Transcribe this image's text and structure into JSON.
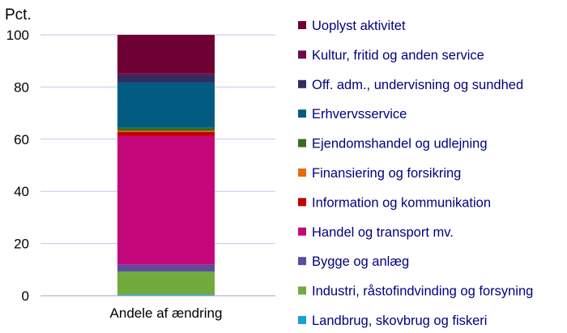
{
  "chart_data": {
    "type": "bar",
    "stacked": true,
    "categories": [
      "Andele af ændring"
    ],
    "ylabel": "Pct.",
    "ylim": [
      0,
      100
    ],
    "yticks": [
      0,
      20,
      40,
      60,
      80,
      100
    ],
    "grid": true,
    "legend_position": "right",
    "series": [
      {
        "name": "Landbrug, skovbrug og fiskeri",
        "values": [
          0.5
        ],
        "color": "#1a9ed9"
      },
      {
        "name": "Industri, råstofindvinding og forsyning",
        "values": [
          8.8
        ],
        "color": "#72aa3e"
      },
      {
        "name": "Bygge og anlæg",
        "values": [
          2.6
        ],
        "color": "#5b4c9e"
      },
      {
        "name": "Handel og transport mv.",
        "values": [
          49.3
        ],
        "color": "#c5077c"
      },
      {
        "name": "Information og kommunikation",
        "values": [
          1.6
        ],
        "color": "#c00000"
      },
      {
        "name": "Finansiering og forsikring",
        "values": [
          0.4
        ],
        "color": "#e46c0a"
      },
      {
        "name": "Ejendomshandel og udlejning",
        "values": [
          1.2
        ],
        "color": "#3b6d21"
      },
      {
        "name": "Erhvervsservice",
        "values": [
          17.3
        ],
        "color": "#025c82"
      },
      {
        "name": "Off. adm., undervisning og sundhed",
        "values": [
          2.8
        ],
        "color": "#2e2d5e"
      },
      {
        "name": "Kultur, fritid og anden service",
        "values": [
          0.8
        ],
        "color": "#6a0c47"
      },
      {
        "name": "Uoplyst aktivitet",
        "values": [
          14.7
        ],
        "color": "#6f0034"
      }
    ]
  }
}
